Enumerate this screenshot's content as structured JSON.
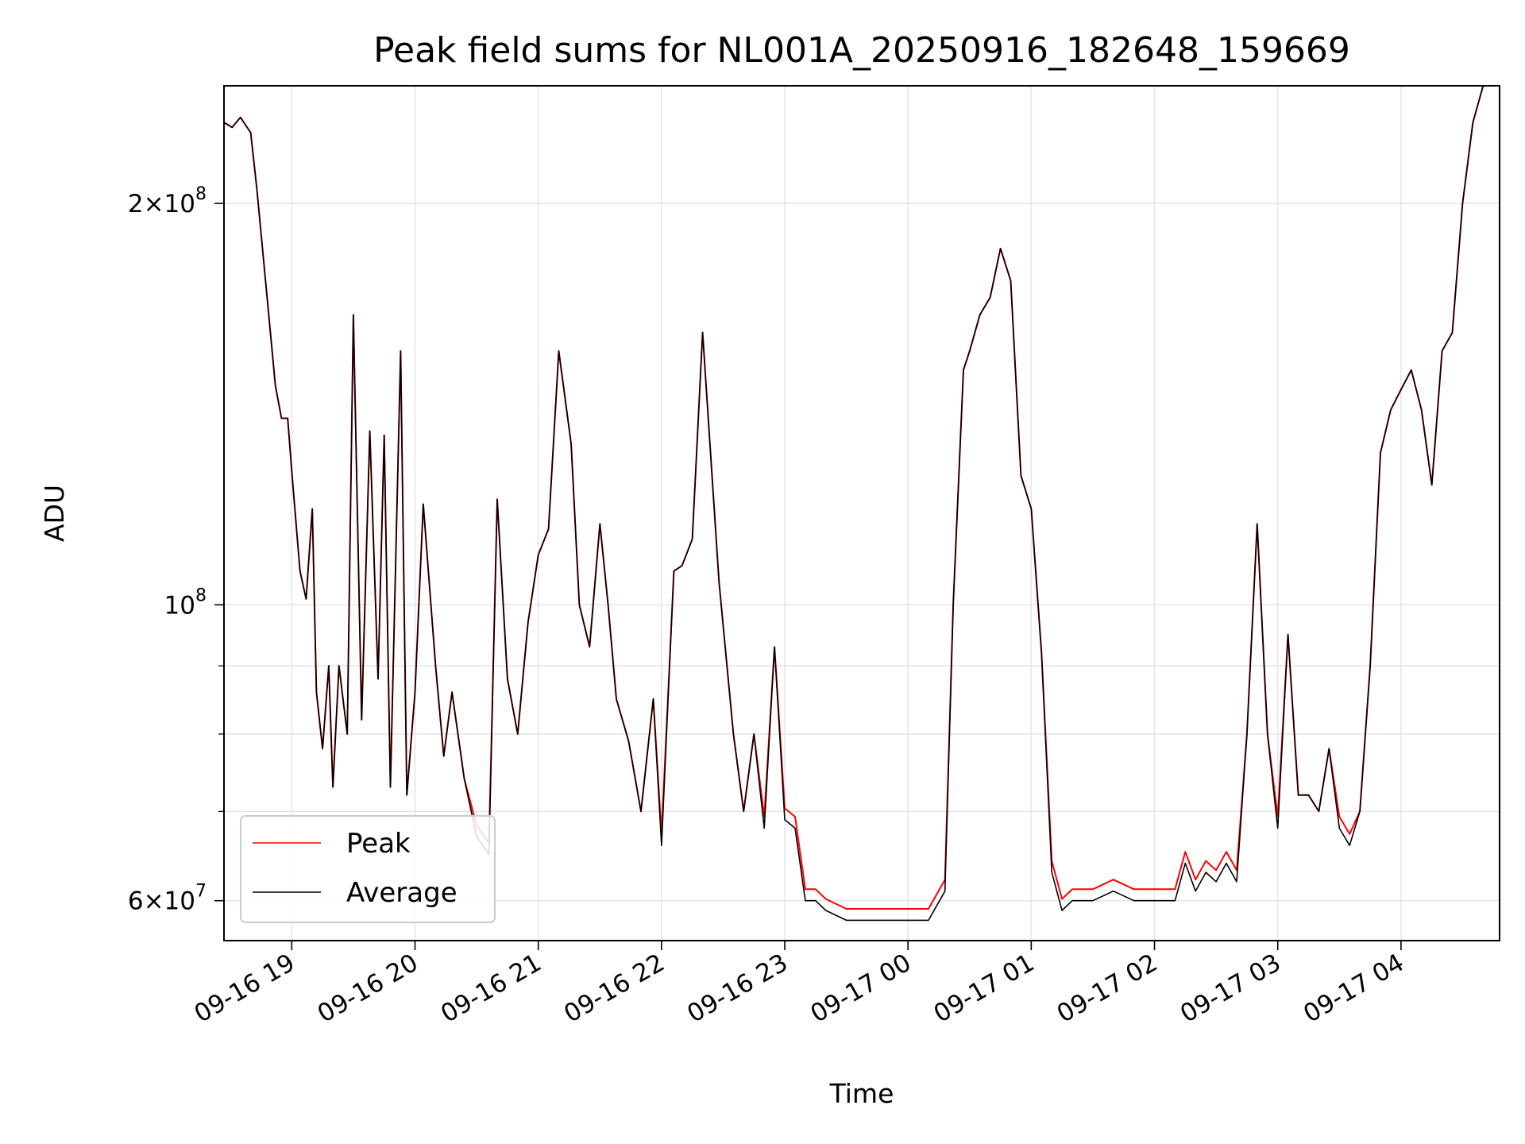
{
  "chart_data": {
    "type": "line",
    "title": "Peak field sums for NL001A_20250916_182648_159669",
    "xlabel": "Time",
    "ylabel": "ADU",
    "yscale": "log",
    "xlim": [
      "09-16 18:27",
      "09-17 04:48"
    ],
    "ylim": [
      56000000,
      245000000
    ],
    "grid": true,
    "legend_position": "lower-left",
    "x_ticks": [
      {
        "value": "09-16 19:00",
        "label": "09-16 19"
      },
      {
        "value": "09-16 20:00",
        "label": "09-16 20"
      },
      {
        "value": "09-16 21:00",
        "label": "09-16 21"
      },
      {
        "value": "09-16 22:00",
        "label": "09-16 22"
      },
      {
        "value": "09-16 23:00",
        "label": "09-16 23"
      },
      {
        "value": "09-17 00:00",
        "label": "09-17 00"
      },
      {
        "value": "09-17 01:00",
        "label": "09-17 01"
      },
      {
        "value": "09-17 02:00",
        "label": "09-17 02"
      },
      {
        "value": "09-17 03:00",
        "label": "09-17 03"
      },
      {
        "value": "09-17 04:00",
        "label": "09-17 04"
      }
    ],
    "y_ticks": [
      {
        "value": 60000000,
        "mant": "6",
        "exp": "7"
      },
      {
        "value": 100000000,
        "mant": "",
        "exp": "8"
      },
      {
        "value": 200000000,
        "mant": "2",
        "exp": "8"
      }
    ],
    "y_minor_ticks": [
      70000000,
      80000000,
      90000000
    ],
    "series": [
      {
        "name": "Peak",
        "color": "#ff0000",
        "x": [],
        "y": []
      },
      {
        "name": "Average",
        "color": "#000000",
        "x": [
          "09-16 18:27",
          "09-16 18:31",
          "09-16 18:35",
          "09-16 18:40",
          "09-16 18:43",
          "09-16 18:48",
          "09-16 18:52",
          "09-16 18:55",
          "09-16 18:58",
          "09-16 19:00",
          "09-16 19:04",
          "09-16 19:07",
          "09-16 19:10",
          "09-16 19:12",
          "09-16 19:15",
          "09-16 19:18",
          "09-16 19:20",
          "09-16 19:23",
          "09-16 19:27",
          "09-16 19:30",
          "09-16 19:34",
          "09-16 19:38",
          "09-16 19:42",
          "09-16 19:45",
          "09-16 19:48",
          "09-16 19:53",
          "09-16 19:56",
          "09-16 20:00",
          "09-16 20:04",
          "09-16 20:10",
          "09-16 20:14",
          "09-16 20:18",
          "09-16 20:24",
          "09-16 20:30",
          "09-16 20:36",
          "09-16 20:40",
          "09-16 20:45",
          "09-16 20:50",
          "09-16 20:55",
          "09-16 21:00",
          "09-16 21:05",
          "09-16 21:10",
          "09-16 21:16",
          "09-16 21:20",
          "09-16 21:25",
          "09-16 21:30",
          "09-16 21:34",
          "09-16 21:38",
          "09-16 21:44",
          "09-16 21:50",
          "09-16 21:56",
          "09-16 22:00",
          "09-16 22:06",
          "09-16 22:10",
          "09-16 22:15",
          "09-16 22:20",
          "09-16 22:28",
          "09-16 22:35",
          "09-16 22:40",
          "09-16 22:45",
          "09-16 22:50",
          "09-16 22:55",
          "09-16 23:00",
          "09-16 23:05",
          "09-16 23:10",
          "09-16 23:15",
          "09-16 23:20",
          "09-16 23:30",
          "09-16 23:40",
          "09-16 23:50",
          "09-17 00:00",
          "09-17 00:10",
          "09-17 00:18",
          "09-17 00:22",
          "09-17 00:27",
          "09-17 00:30",
          "09-17 00:35",
          "09-17 00:40",
          "09-17 00:45",
          "09-17 00:50",
          "09-17 00:55",
          "09-17 01:00",
          "09-17 01:05",
          "09-17 01:10",
          "09-17 01:15",
          "09-17 01:20",
          "09-17 01:30",
          "09-17 01:40",
          "09-17 01:50",
          "09-17 02:00",
          "09-17 02:10",
          "09-17 02:15",
          "09-17 02:20",
          "09-17 02:25",
          "09-17 02:30",
          "09-17 02:35",
          "09-17 02:40",
          "09-17 02:45",
          "09-17 02:50",
          "09-17 02:55",
          "09-17 03:00",
          "09-17 03:05",
          "09-17 03:10",
          "09-17 03:15",
          "09-17 03:20",
          "09-17 03:25",
          "09-17 03:30",
          "09-17 03:35",
          "09-17 03:40",
          "09-17 03:45",
          "09-17 03:50",
          "09-17 03:55",
          "09-17 04:00",
          "09-17 04:05",
          "09-17 04:10",
          "09-17 04:15",
          "09-17 04:20",
          "09-17 04:25",
          "09-17 04:30",
          "09-17 04:35",
          "09-17 04:40",
          "09-17 04:45",
          "09-17 04:48"
        ],
        "y": [
          230000000,
          228000000,
          232000000,
          226000000,
          205000000,
          170000000,
          146000000,
          138000000,
          138000000,
          126000000,
          106000000,
          101000000,
          118000000,
          86000000,
          78000000,
          90000000,
          73000000,
          90000000,
          80000000,
          165000000,
          82000000,
          135000000,
          88000000,
          134000000,
          73000000,
          155000000,
          72000000,
          86000000,
          119000000,
          90000000,
          77000000,
          86000000,
          74000000,
          67000000,
          65000000,
          120000000,
          88000000,
          80000000,
          97000000,
          109000000,
          114000000,
          155000000,
          132000000,
          100000000,
          93000000,
          115000000,
          100000000,
          85000000,
          79000000,
          70000000,
          85000000,
          66000000,
          106000000,
          107000000,
          112000000,
          160000000,
          104000000,
          80000000,
          70000000,
          80000000,
          68000000,
          93000000,
          69000000,
          68000000,
          60000000,
          60000000,
          59000000,
          58000000,
          58000000,
          58000000,
          58000000,
          58000000,
          61000000,
          100000000,
          150000000,
          155000000,
          165000000,
          170000000,
          185000000,
          175000000,
          125000000,
          118000000,
          92000000,
          63000000,
          59000000,
          60000000,
          60000000,
          61000000,
          60000000,
          60000000,
          60000000,
          64000000,
          61000000,
          63000000,
          62000000,
          64000000,
          62000000,
          80000000,
          115000000,
          80000000,
          68000000,
          95000000,
          72000000,
          72000000,
          70000000,
          78000000,
          68000000,
          66000000,
          70000000,
          90000000,
          130000000,
          140000000,
          145000000,
          150000000,
          140000000,
          123000000,
          155000000,
          160000000,
          200000000,
          230000000,
          245000000,
          245000000,
          245000000
        ]
      }
    ]
  }
}
